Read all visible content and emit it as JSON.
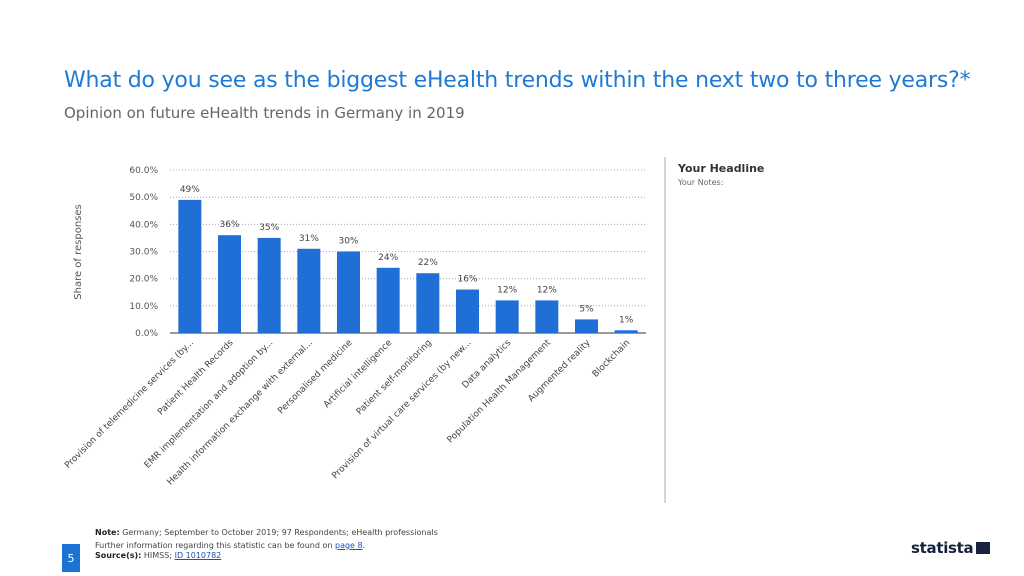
{
  "title": "What do you see as the biggest eHealth trends within the next two to three years?*",
  "subtitle": "Opinion on future eHealth trends in Germany in 2019",
  "side_panel": {
    "headline": "Your Headline",
    "notes": "Your Notes:"
  },
  "footer": {
    "note_label": "Note:",
    "note_text": "Germany; September to October 2019; 97 Respondents; eHealth professionals",
    "further_info": "Further information regarding this statistic can be found on",
    "page_link": "page 8",
    "period": ".",
    "source_label": "Source(s):",
    "source_text": "HIMSS;",
    "source_link": "ID 1010782"
  },
  "page_number": "5",
  "logo_text": "statista",
  "colors": {
    "bar": "#1f6fd6",
    "accent": "#1f7ad6",
    "logo": "#16233f"
  },
  "chart_data": {
    "type": "bar",
    "title": "What do you see as the biggest eHealth trends within the next two to three years?*",
    "ylabel": "Share of responses",
    "xlabel": "",
    "ylim": [
      0,
      60
    ],
    "yticks": [
      0,
      10,
      20,
      30,
      40,
      50,
      60
    ],
    "ytick_labels": [
      "0.0%",
      "10.0%",
      "20.0%",
      "30.0%",
      "40.0%",
      "50.0%",
      "60.0%"
    ],
    "grid": true,
    "categories": [
      "Provision of telemedicine services (by...",
      "Patient Health Records",
      "EMR implementation and adoption by...",
      "Health information exchange with external...",
      "Personalised medicine",
      "Artificial intelligence",
      "Patient self-monitoring",
      "Provision of virtual care services (by new...",
      "Data analytics",
      "Population Health Management",
      "Augmented reality",
      "Blockchain"
    ],
    "values": [
      49,
      36,
      35,
      31,
      30,
      24,
      22,
      16,
      12,
      12,
      5,
      1
    ],
    "value_labels": [
      "49%",
      "36%",
      "35%",
      "31%",
      "30%",
      "24%",
      "22%",
      "16%",
      "12%",
      "12%",
      "5%",
      "1%"
    ]
  }
}
